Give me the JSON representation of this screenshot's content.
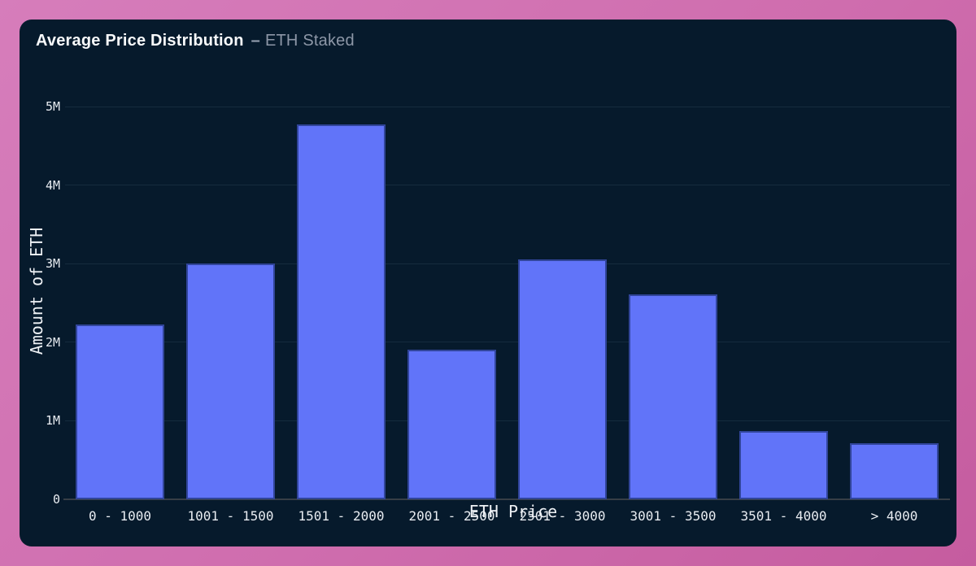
{
  "page": {
    "background_color_top": "#d67dbb",
    "background_color_bottom": "#c55c9f"
  },
  "card": {
    "background_color": "#061a2c",
    "title_main": "Average Price Distribution",
    "title_separator": "–",
    "title_sub": "ETH Staked"
  },
  "chart_data": {
    "type": "bar",
    "title": "Average Price Distribution – ETH Staked",
    "xlabel": "ETH Price",
    "ylabel": "Amount of ETH",
    "unit": "million ETH",
    "categories": [
      "0 - 1000",
      "1001 - 1500",
      "1501 - 2000",
      "2001 - 2500",
      "2501 - 3000",
      "3001 - 3500",
      "3501 - 4000",
      "> 4000"
    ],
    "values": [
      2.23,
      3.0,
      4.77,
      1.9,
      3.05,
      2.61,
      0.87,
      0.71
    ],
    "y_ticks": [
      {
        "value": 0,
        "label": "0"
      },
      {
        "value": 1,
        "label": "1M"
      },
      {
        "value": 2,
        "label": "2M"
      },
      {
        "value": 3,
        "label": "3M"
      },
      {
        "value": 4,
        "label": "4M"
      },
      {
        "value": 5,
        "label": "5M"
      }
    ],
    "ylim": [
      0,
      5.2
    ],
    "grid": "horizontal",
    "legend": "none",
    "bar_color": "#6174f9",
    "bar_border_color": "#31459a",
    "grid_color": "#152b3e",
    "axis_line_color": "#373e46",
    "tick_text_color": "#e9edf2"
  }
}
